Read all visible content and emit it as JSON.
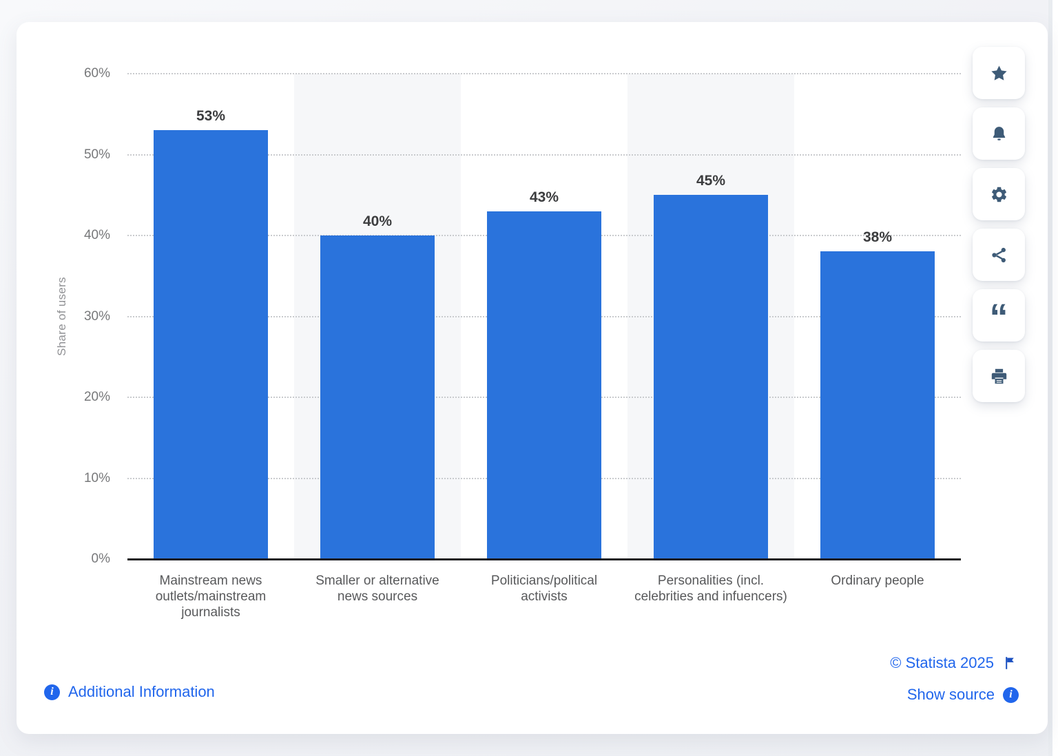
{
  "chart_data": {
    "type": "bar",
    "title": "",
    "xlabel": "",
    "ylabel": "Share of users",
    "categories": [
      "Mainstream news outlets/mainstream journalists",
      "Smaller or alternative news sources",
      "Politicians/political activists",
      "Personalities (incl. celebrities and infuencers)",
      "Ordinary people"
    ],
    "values": [
      53,
      40,
      43,
      45,
      38
    ],
    "value_labels": [
      "53%",
      "40%",
      "43%",
      "45%",
      "38%"
    ],
    "ylim": [
      0,
      60
    ],
    "ytick_labels": [
      "0%",
      "10%",
      "20%",
      "30%",
      "40%",
      "50%",
      "60%"
    ],
    "grid": "horizontal-dotted",
    "legend": null,
    "bar_color": "#2A73DC",
    "band_stripe_color": "#f6f7f9"
  },
  "toolbar": {
    "buttons": [
      {
        "icon": "star-icon"
      },
      {
        "icon": "bell-icon"
      },
      {
        "icon": "settings-icon"
      },
      {
        "icon": "share-icon"
      },
      {
        "icon": "cite-icon"
      },
      {
        "icon": "print-icon"
      }
    ]
  },
  "footer": {
    "additional_information_label": "Additional Information",
    "copyright_label": "© Statista 2025",
    "show_source_label": "Show source",
    "info_glyph": "i"
  },
  "colors": {
    "bar": "#2A73DC",
    "link": "#2166EC",
    "toolbar_icon": "#3E5B77",
    "flag": "#1A4FC0",
    "axis": "#1c1c1e",
    "gridline": "#c9cbce"
  }
}
